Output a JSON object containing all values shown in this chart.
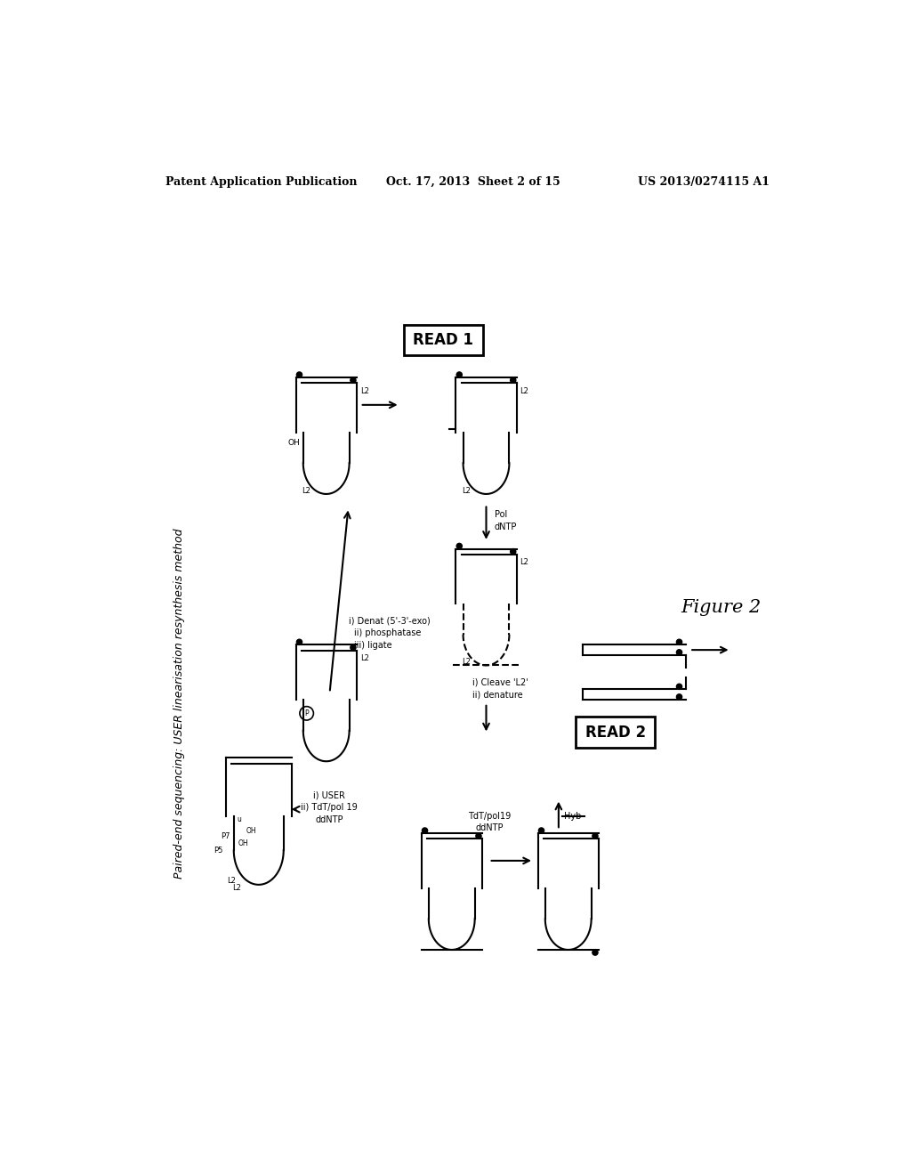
{
  "background_color": "#ffffff",
  "header_left": "Patent Application Publication",
  "header_center": "Oct. 17, 2013  Sheet 2 of 15",
  "header_right": "US 2013/0274115 A1",
  "title_rotated": "Paired-end sequencing: USER linearisation resynthesis method",
  "figure_label": "Figure 2",
  "read1_label": "READ 1",
  "read2_label": "READ 2"
}
